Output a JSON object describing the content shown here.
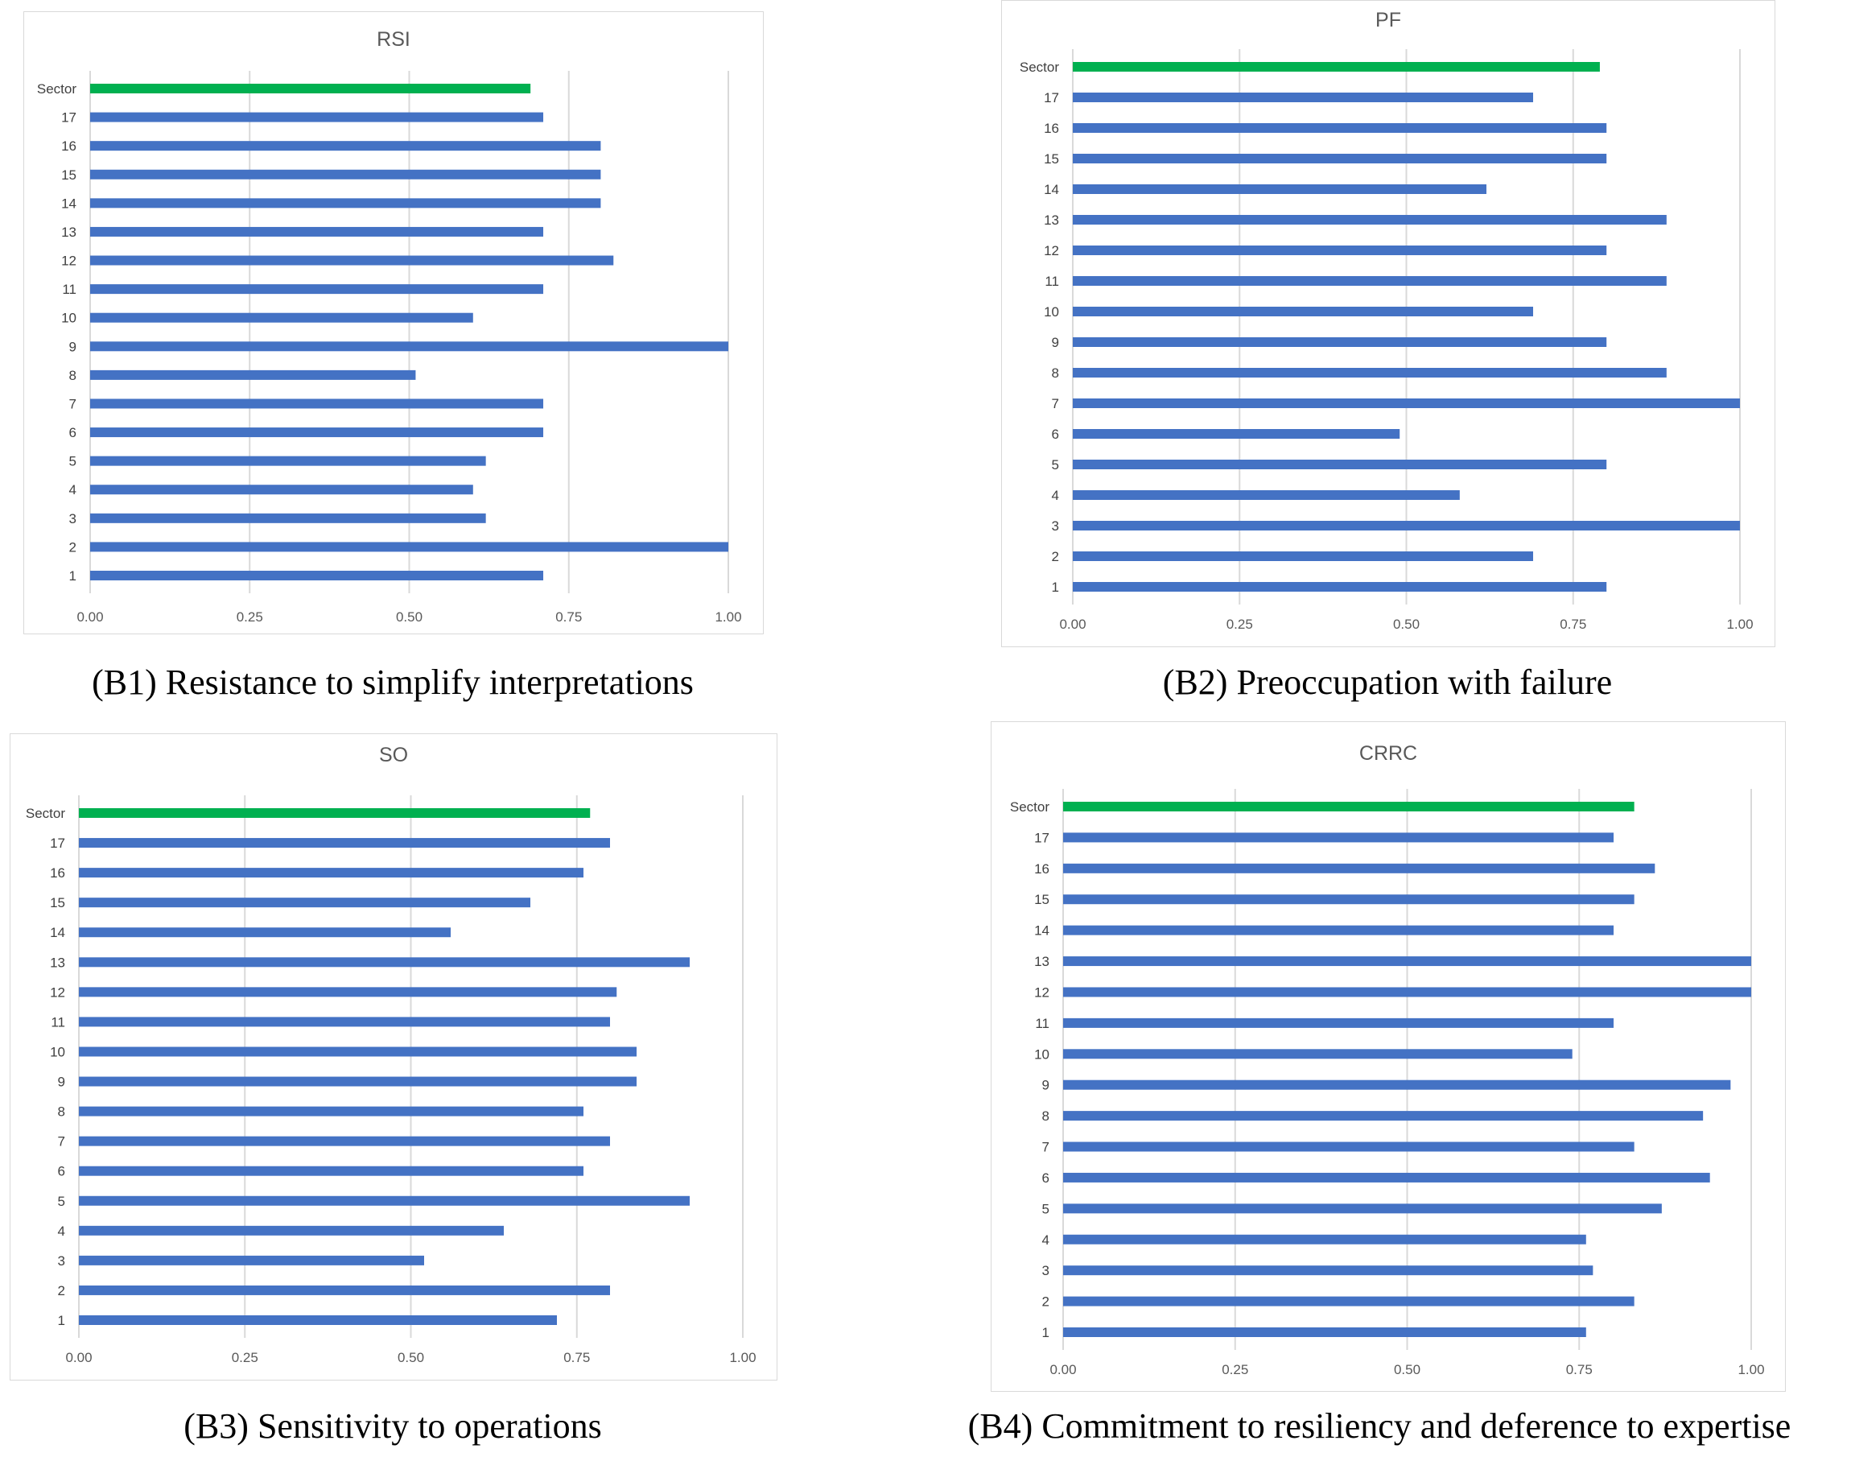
{
  "colors": {
    "bar": "#4472c4",
    "sector": "#00b050",
    "grid": "#d9d9d9",
    "text": "#595959"
  },
  "chart_data": [
    {
      "type": "bar",
      "orientation": "horizontal",
      "title": "RSI",
      "categories": [
        "1",
        "2",
        "3",
        "4",
        "5",
        "6",
        "7",
        "8",
        "9",
        "10",
        "11",
        "12",
        "13",
        "14",
        "15",
        "16",
        "17",
        "Sector"
      ],
      "values": [
        0.71,
        1.0,
        0.62,
        0.6,
        0.62,
        0.71,
        0.71,
        0.51,
        1.0,
        0.6,
        0.71,
        0.82,
        0.71,
        0.8,
        0.8,
        0.8,
        0.71,
        0.69
      ],
      "highlight_category": "Sector",
      "xticks": [
        "0.00",
        "0.25",
        "0.50",
        "0.75",
        "1.00"
      ],
      "xlim": [
        0,
        1
      ],
      "grid": true,
      "caption": "(B1) Resistance to simplify interpretations"
    },
    {
      "type": "bar",
      "orientation": "horizontal",
      "title": "PF",
      "categories": [
        "1",
        "2",
        "3",
        "4",
        "5",
        "6",
        "7",
        "8",
        "9",
        "10",
        "11",
        "12",
        "13",
        "14",
        "15",
        "16",
        "17",
        "Sector"
      ],
      "values": [
        0.8,
        0.69,
        1.0,
        0.58,
        0.8,
        0.49,
        1.0,
        0.89,
        0.8,
        0.69,
        0.89,
        0.8,
        0.89,
        0.62,
        0.8,
        0.8,
        0.69,
        0.79
      ],
      "highlight_category": "Sector",
      "xticks": [
        "0.00",
        "0.25",
        "0.50",
        "0.75",
        "1.00"
      ],
      "xlim": [
        0,
        1
      ],
      "grid": true,
      "caption": "(B2) Preoccupation with failure"
    },
    {
      "type": "bar",
      "orientation": "horizontal",
      "title": "SO",
      "categories": [
        "1",
        "2",
        "3",
        "4",
        "5",
        "6",
        "7",
        "8",
        "9",
        "10",
        "11",
        "12",
        "13",
        "14",
        "15",
        "16",
        "17",
        "Sector"
      ],
      "values": [
        0.72,
        0.8,
        0.52,
        0.64,
        0.92,
        0.76,
        0.8,
        0.76,
        0.84,
        0.84,
        0.8,
        0.81,
        0.92,
        0.56,
        0.68,
        0.76,
        0.8,
        0.77
      ],
      "highlight_category": "Sector",
      "xticks": [
        "0.00",
        "0.25",
        "0.50",
        "0.75",
        "1.00"
      ],
      "xlim": [
        0,
        1
      ],
      "grid": true,
      "caption": "(B3) Sensitivity to operations"
    },
    {
      "type": "bar",
      "orientation": "horizontal",
      "title": "CRRC",
      "categories": [
        "1",
        "2",
        "3",
        "4",
        "5",
        "6",
        "7",
        "8",
        "9",
        "10",
        "11",
        "12",
        "13",
        "14",
        "15",
        "16",
        "17",
        "Sector"
      ],
      "values": [
        0.76,
        0.83,
        0.77,
        0.76,
        0.87,
        0.94,
        0.83,
        0.93,
        0.97,
        0.74,
        0.8,
        1.0,
        1.0,
        0.8,
        0.83,
        0.86,
        0.8,
        0.83
      ],
      "highlight_category": "Sector",
      "xticks": [
        "0.00",
        "0.25",
        "0.50",
        "0.75",
        "1.00"
      ],
      "xlim": [
        0,
        1
      ],
      "grid": true,
      "caption": "(B4) Commitment to resiliency and deference to expertise"
    }
  ]
}
